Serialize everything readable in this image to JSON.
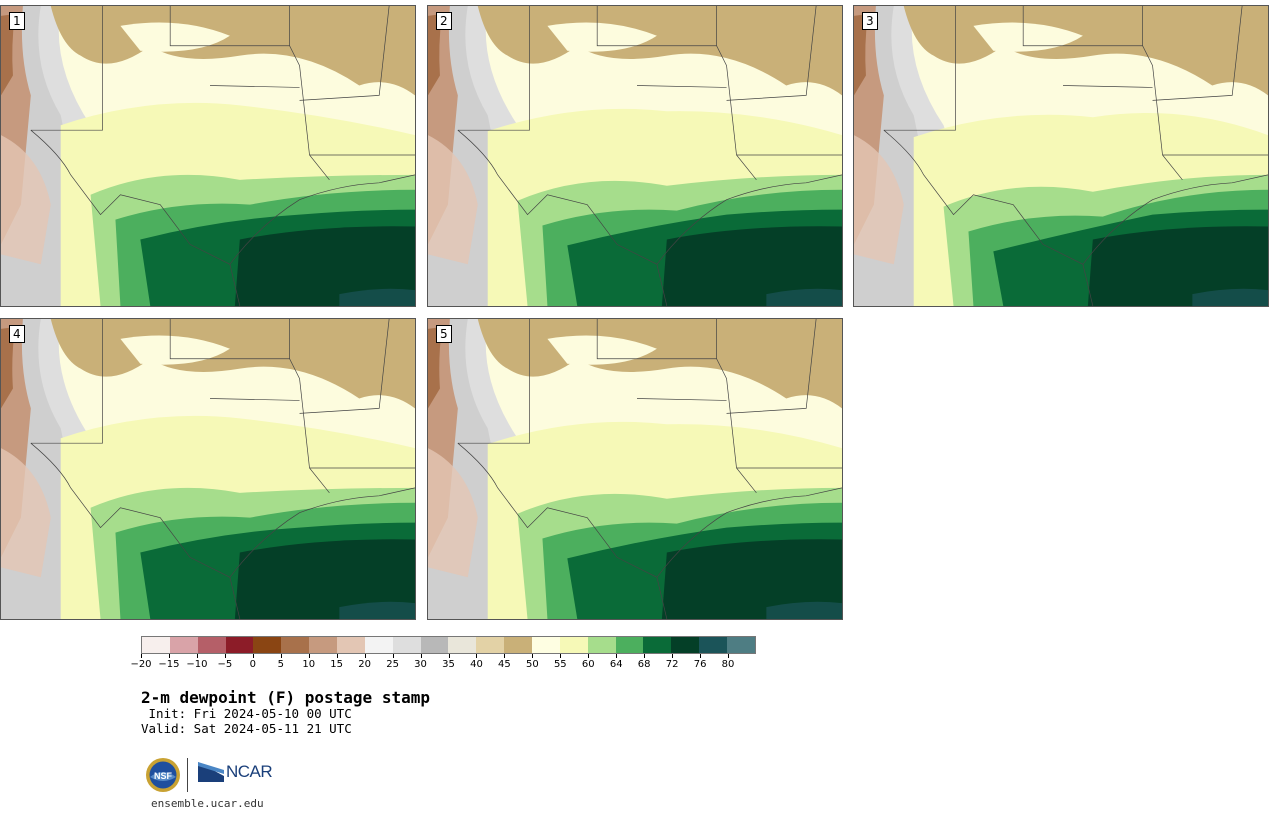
{
  "title": "2-m dewpoint (F) postage stamp",
  "init_text": " Init: Fri 2024-05-10 00 UTC",
  "valid_text": "Valid: Sat 2024-05-11 21 UTC",
  "url": "ensemble.ucar.edu",
  "logos": {
    "nsf": "NSF",
    "ncar": "NCAR"
  },
  "panels": [
    {
      "label": "1"
    },
    {
      "label": "2"
    },
    {
      "label": "3"
    },
    {
      "label": "4"
    },
    {
      "label": "5"
    }
  ],
  "colorbar": {
    "tick_labels": [
      "−20",
      "−15",
      "−10",
      "−5",
      "0",
      "5",
      "10",
      "15",
      "20",
      "25",
      "30",
      "35",
      "40",
      "45",
      "50",
      "55",
      "60",
      "64",
      "68",
      "72",
      "76",
      "80"
    ],
    "colors": [
      "#f7efed",
      "#d9a3a8",
      "#b55f68",
      "#8c1c28",
      "#8a4513",
      "#a8714b",
      "#c69a7f",
      "#e3c6b4",
      "#f3f3f3",
      "#dedede",
      "#b8b8b8",
      "#e9e6da",
      "#e3d2a6",
      "#c9b078",
      "#fefee2",
      "#f6f9b7",
      "#a6dd8c",
      "#4caf5e",
      "#0a6b38",
      "#043f27",
      "#1b5459",
      "#4e7d83"
    ]
  }
}
